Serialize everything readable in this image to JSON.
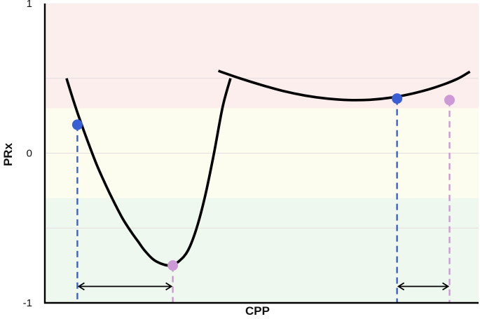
{
  "chart_data": {
    "type": "line",
    "title": "",
    "xlabel": "CPP",
    "ylabel": "PRx",
    "ylim": [
      -1,
      1
    ],
    "xlim": [
      0,
      100
    ],
    "y_ticks": [
      {
        "value": 1,
        "label": "1"
      },
      {
        "value": 0,
        "label": "0"
      },
      {
        "value": -1,
        "label": "-1"
      }
    ],
    "grid": true,
    "bands": [
      {
        "from": 0.3,
        "to": 1,
        "color": "#fdeeee"
      },
      {
        "from": -0.3,
        "to": 0.3,
        "color": "#fdfdef"
      },
      {
        "from": -1,
        "to": -0.3,
        "color": "#eef8ee"
      }
    ],
    "curve_color": "#000000",
    "series": [
      {
        "x": [
          5,
          6.5,
          8,
          10,
          12,
          14,
          16,
          18,
          20,
          21.5,
          23,
          25,
          27,
          29,
          31,
          33,
          35,
          37,
          39,
          41,
          42.8
        ],
        "y": [
          0.5,
          0.36,
          0.23,
          0.07,
          -0.08,
          -0.21,
          -0.33,
          -0.44,
          -0.53,
          -0.59,
          -0.65,
          -0.71,
          -0.74,
          -0.75,
          -0.72,
          -0.65,
          -0.5,
          -0.28,
          0.0,
          0.31,
          0.5
        ]
      },
      {
        "x": [
          40,
          45,
          50,
          55,
          60,
          65,
          70,
          75,
          80,
          85,
          90,
          95,
          98
        ],
        "y": [
          0.55,
          0.5,
          0.455,
          0.415,
          0.385,
          0.365,
          0.355,
          0.357,
          0.372,
          0.4,
          0.44,
          0.495,
          0.545
        ]
      }
    ],
    "markers": [
      {
        "x": 7.5,
        "y": 0.19,
        "color": "#3a5fd4"
      },
      {
        "x": 29.5,
        "y": -0.75,
        "color": "#cc99d6"
      },
      {
        "x": 81.2,
        "y": 0.365,
        "color": "#3a5fd4"
      },
      {
        "x": 93.3,
        "y": 0.355,
        "color": "#cc99d6"
      }
    ],
    "arrows": [
      {
        "from_x": 7.5,
        "to_x": 29.5,
        "y": -0.89
      },
      {
        "from_x": 81.2,
        "to_x": 93.3,
        "y": -0.89
      }
    ]
  }
}
